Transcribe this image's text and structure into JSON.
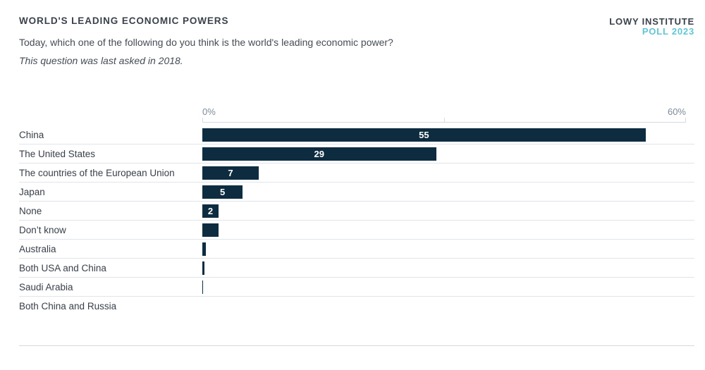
{
  "header": {
    "title": "WORLD'S LEADING ECONOMIC POWERS",
    "logo_line1": "LOWY INSTITUTE",
    "logo_line2": "POLL 2023",
    "question": "Today, which one of the following do you think is the world's leading economic power?",
    "note": "This question was last asked in 2018."
  },
  "colors": {
    "bar": "#0e2c3f",
    "accent": "#63c4d6",
    "title_text": "#3b424a",
    "body_text": "#454c54",
    "category_label": "#394049",
    "axis_label": "#7f8b99",
    "axis_line": "#d6dbdf",
    "row_separator": "#e1e5e9",
    "footer_rule": "#d6dade",
    "bar_value_text": "#ffffff"
  },
  "chart_data": {
    "type": "bar",
    "orientation": "horizontal",
    "title": "World's leading economic powers",
    "categories": [
      "China",
      "The United States",
      "The countries of the European Union",
      "Japan",
      "None",
      "Don’t know",
      "Australia",
      "Both USA and China",
      "Saudi Arabia",
      "Both China and Russia"
    ],
    "values": [
      55,
      29,
      7,
      5,
      2,
      2,
      0.4,
      0.3,
      0.1,
      0
    ],
    "value_labels": [
      "55",
      "29",
      "7",
      "5",
      "2",
      "",
      "",
      "",
      "",
      ""
    ],
    "unit": "%",
    "x_axis": {
      "min": 0,
      "max": 60,
      "min_label": "0%",
      "max_label": "60%",
      "ticks": [
        0,
        30,
        60
      ]
    },
    "legend": "none",
    "grid": "none"
  }
}
